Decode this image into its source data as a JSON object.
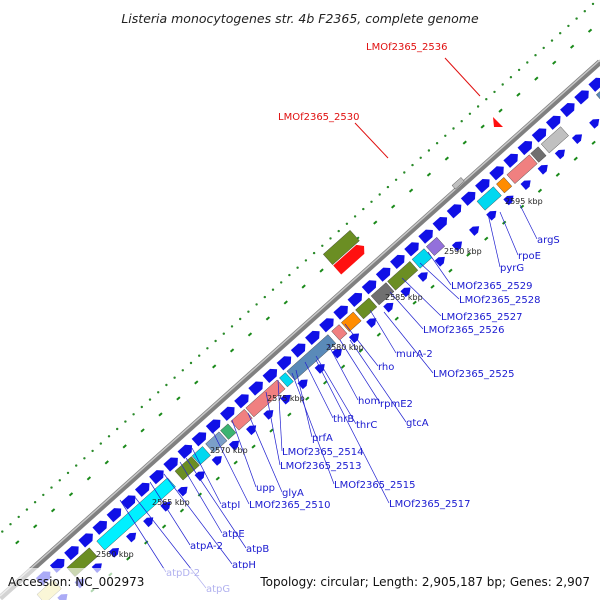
{
  "title": "Listeria monocytogenes str. 4b F2365, complete genome",
  "footer": {
    "accession": "Accession: NC_002973",
    "summary": "Topology: circular; Length: 2,905,187 bp; Genes: 2,907"
  },
  "colors": {
    "forward_gene": "#1010e6",
    "backbone": "#888888",
    "tick": "#1a8a1a",
    "dotted_circle": "#2a8a2a",
    "label": "#1a1ad0",
    "highlight": "#e01010"
  },
  "kbp_markers": [
    "2560 kbp",
    "2565 kbp",
    "2570 kbp",
    "2575 kbp",
    "2580 kbp",
    "2585 kbp",
    "2590 kbp",
    "2595 kbp"
  ],
  "highlight_labels": [
    "LMOf2365_2536",
    "LMOf2365_2530"
  ],
  "gene_labels": [
    "argS",
    "rpoE",
    "pyrG",
    "LMOf2365_2529",
    "LMOf2365_2528",
    "LMOf2365_2527",
    "LMOf2365_2526",
    "murA-2",
    "LMOf2365_2525",
    "rho",
    "rpmE2",
    "hom",
    "gtcA",
    "thrC",
    "thrB",
    "LMOf2365_2514",
    "prfA",
    "LMOf2365_2513",
    "LMOf2365_2515",
    "glyA",
    "upp",
    "LMOf2365_2517",
    "LMOf2365_2510",
    "atpI",
    "atpE",
    "atpB",
    "atpA-2",
    "atpH",
    "atpD-2",
    "atpG"
  ]
}
